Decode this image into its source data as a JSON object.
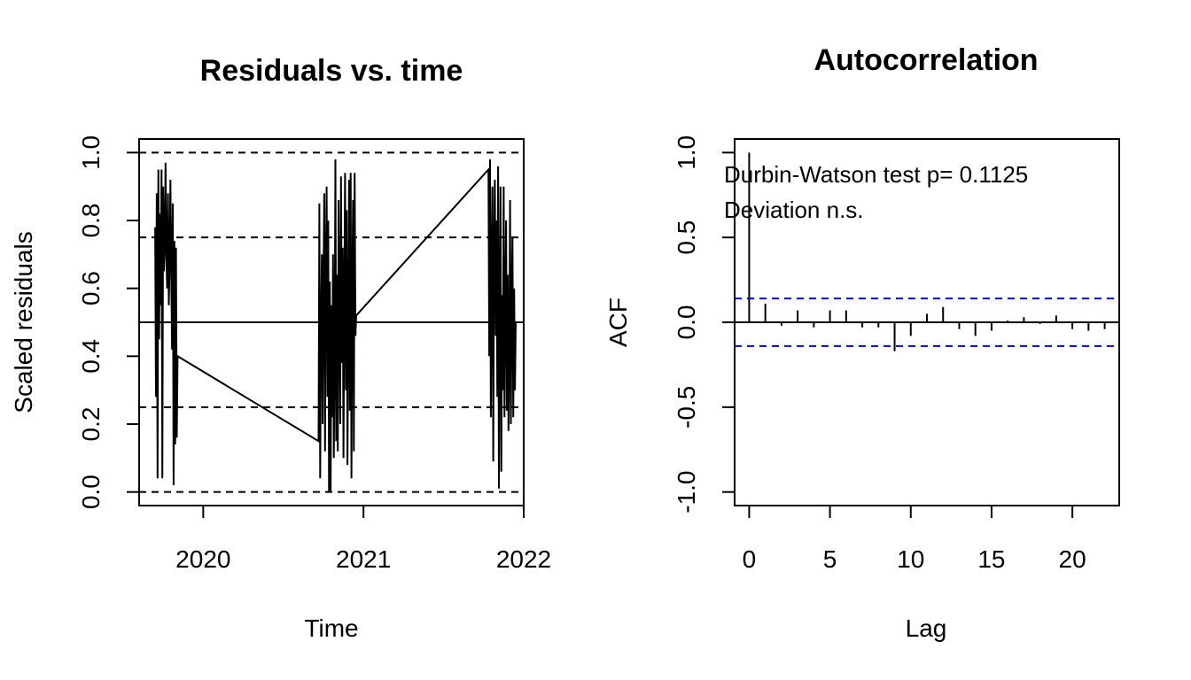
{
  "chart_data": [
    {
      "type": "line",
      "title": "Residuals vs. time",
      "xlabel": "Time",
      "ylabel": "Scaled residuals",
      "xlim": [
        2019.6,
        2022.0
      ],
      "ylim": [
        -0.04,
        1.04
      ],
      "x_ticks": [
        2020,
        2021,
        2022
      ],
      "x_tick_labels": [
        "2020",
        "2021",
        "2022"
      ],
      "y_ticks": [
        0.0,
        0.2,
        0.4,
        0.6,
        0.8,
        1.0
      ],
      "y_tick_labels": [
        "0.0",
        "0.2",
        "0.4",
        "0.6",
        "0.8",
        "1.0"
      ],
      "reference_lines": {
        "solid": [
          0.5
        ],
        "dashed": [
          0.0,
          0.25,
          0.75,
          1.0
        ]
      },
      "series": [
        {
          "x": [
            2019.7,
            2019.705,
            2019.71,
            2019.715,
            2019.72,
            2019.725,
            2019.73,
            2019.735,
            2019.74,
            2019.745,
            2019.75,
            2019.755,
            2019.76,
            2019.765,
            2019.77,
            2019.775,
            2019.78,
            2019.785,
            2019.79,
            2019.795,
            2019.8,
            2019.805,
            2019.81,
            2019.815,
            2019.82,
            2019.825,
            2019.83,
            2019.835,
            2019.84,
            2020.72,
            2020.725,
            2020.73,
            2020.735,
            2020.74,
            2020.745,
            2020.75,
            2020.755,
            2020.76,
            2020.765,
            2020.77,
            2020.775,
            2020.78,
            2020.785,
            2020.79,
            2020.795,
            2020.8,
            2020.805,
            2020.81,
            2020.815,
            2020.82,
            2020.825,
            2020.83,
            2020.835,
            2020.84,
            2020.845,
            2020.85,
            2020.855,
            2020.86,
            2020.865,
            2020.87,
            2020.875,
            2020.88,
            2020.885,
            2020.89,
            2020.895,
            2020.9,
            2020.905,
            2020.91,
            2020.915,
            2020.92,
            2020.925,
            2020.93,
            2020.935,
            2020.94,
            2020.945,
            2020.95,
            2020.955,
            2021.78,
            2021.785,
            2021.79,
            2021.795,
            2021.8,
            2021.805,
            2021.81,
            2021.815,
            2021.82,
            2021.825,
            2021.83,
            2021.835,
            2021.84,
            2021.845,
            2021.85,
            2021.855,
            2021.86,
            2021.865,
            2021.87,
            2021.875,
            2021.88,
            2021.885,
            2021.89,
            2021.895,
            2021.9,
            2021.905,
            2021.91,
            2021.915,
            2021.92,
            2021.925,
            2021.93,
            2021.935,
            2021.94,
            2021.945,
            2021.95
          ],
          "y": [
            0.78,
            0.28,
            0.88,
            0.04,
            0.95,
            0.45,
            0.82,
            0.55,
            0.95,
            0.04,
            0.9,
            0.65,
            0.72,
            0.97,
            0.7,
            0.6,
            0.88,
            0.55,
            0.66,
            0.92,
            0.68,
            0.42,
            0.85,
            0.02,
            0.74,
            0.14,
            0.72,
            0.16,
            0.4,
            0.15,
            0.85,
            0.04,
            0.45,
            0.7,
            0.2,
            0.6,
            0.88,
            0.12,
            0.66,
            0.9,
            0.28,
            0.8,
            0.0,
            0.62,
            0.0,
            0.55,
            0.22,
            0.7,
            0.1,
            0.4,
            0.98,
            0.15,
            0.64,
            0.12,
            0.86,
            0.52,
            0.2,
            0.93,
            0.38,
            0.72,
            0.1,
            0.56,
            0.94,
            0.3,
            0.83,
            0.08,
            0.48,
            0.92,
            0.24,
            0.94,
            0.04,
            0.6,
            0.86,
            0.12,
            0.94,
            0.46,
            0.52,
            0.95,
            0.4,
            0.98,
            0.22,
            0.64,
            0.9,
            0.09,
            0.7,
            0.92,
            0.46,
            0.8,
            0.28,
            0.96,
            0.01,
            0.5,
            0.9,
            0.06,
            0.58,
            0.3,
            0.9,
            0.22,
            0.55,
            0.8,
            0.24,
            0.64,
            0.18,
            0.4,
            0.86,
            0.2,
            0.55,
            0.75,
            0.22,
            0.6,
            0.3,
            0.5
          ]
        }
      ]
    },
    {
      "type": "bar",
      "title": "Autocorrelation",
      "xlabel": "Lag",
      "ylabel": "ACF",
      "xlim": [
        -0.9,
        22.9
      ],
      "ylim": [
        -1.08,
        1.08
      ],
      "x_ticks": [
        0,
        5,
        10,
        15,
        20
      ],
      "x_tick_labels": [
        "0",
        "5",
        "10",
        "15",
        "20"
      ],
      "y_ticks": [
        -1.0,
        -0.5,
        0.0,
        0.5,
        1.0
      ],
      "y_tick_labels": [
        "-1.0",
        "-0.5",
        "0.0",
        "0.5",
        "1.0"
      ],
      "confidence_band": 0.14,
      "band_color": "#0000cd",
      "lags": [
        0,
        1,
        2,
        3,
        4,
        5,
        6,
        7,
        8,
        9,
        10,
        11,
        12,
        13,
        14,
        15,
        16,
        17,
        18,
        19,
        20,
        21,
        22
      ],
      "values": [
        1.0,
        0.11,
        -0.02,
        0.07,
        -0.03,
        0.07,
        0.07,
        -0.03,
        -0.03,
        -0.17,
        -0.08,
        0.05,
        0.09,
        -0.04,
        -0.08,
        -0.05,
        0.01,
        0.03,
        -0.01,
        0.04,
        -0.04,
        -0.05,
        -0.04
      ],
      "annotations": [
        "Durbin-Watson test  p= 0.1125",
        "Deviation  n.s."
      ]
    }
  ]
}
